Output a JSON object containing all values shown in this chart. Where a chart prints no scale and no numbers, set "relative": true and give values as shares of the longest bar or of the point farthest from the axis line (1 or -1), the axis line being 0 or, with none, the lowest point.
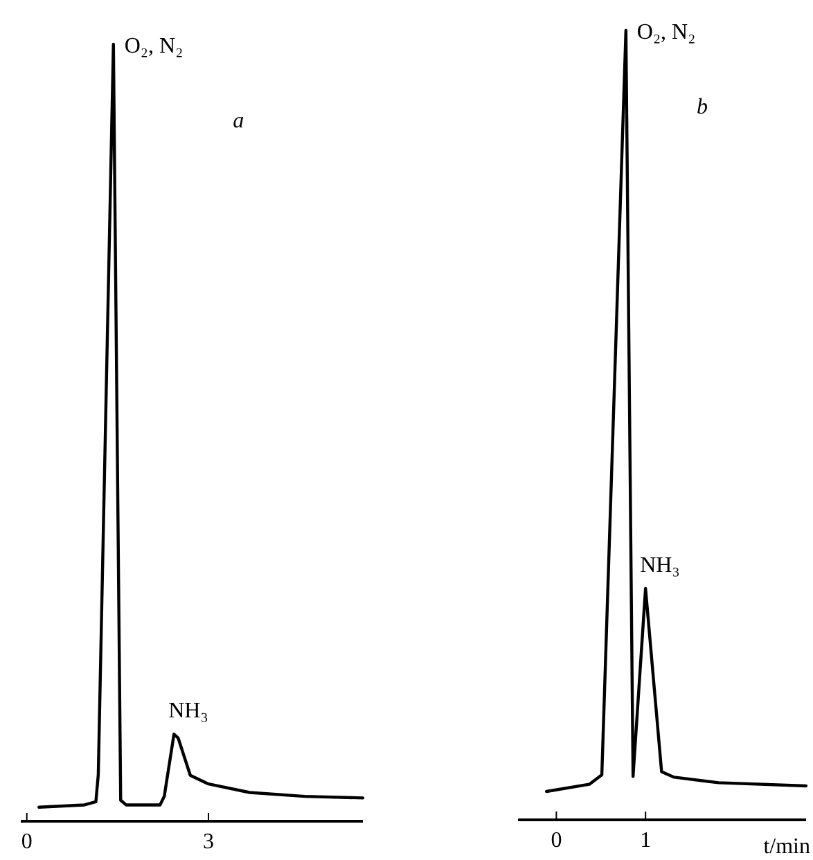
{
  "chart_data": [
    {
      "type": "line",
      "relative": true,
      "xlim": [
        -0.1,
        5.55
      ],
      "xticks": [
        0,
        3
      ],
      "annotations": [
        {
          "text": "O₂, N₂",
          "x": 1.43,
          "y": 1
        },
        {
          "text": "NH₃",
          "x": 2.43,
          "y": 0.112
        },
        "a"
      ],
      "series": [
        {
          "color": "#000000",
          "x": [
            0.2,
            0.95,
            1.14,
            1.18,
            1.43,
            1.55,
            1.64,
            2.2,
            2.27,
            2.43,
            2.5,
            2.7,
            3.0,
            3.68,
            4.59,
            5.55
          ],
          "values": [
            0.018,
            0.021,
            0.025,
            0.06,
            1,
            0.027,
            0.021,
            0.021,
            0.032,
            0.112,
            0.107,
            0.059,
            0.048,
            0.037,
            0.032,
            0.03
          ]
        }
      ]
    },
    {
      "type": "line",
      "relative": true,
      "xlim": [
        -0.43,
        2.8
      ],
      "xticks": [
        0,
        1
      ],
      "xlabel": "t/min",
      "annotations": [
        {
          "text": "O₂, N₂",
          "x": 0.78,
          "y": 1
        },
        {
          "text": "NH₃",
          "x": 1.0,
          "y": 0.293
        },
        "b"
      ],
      "series": [
        {
          "color": "#000000",
          "x": [
            -0.11,
            0.37,
            0.51,
            0.78,
            0.86,
            1.0,
            1.18,
            1.32,
            1.82,
            2.8
          ],
          "values": [
            0.036,
            0.045,
            0.057,
            1,
            0.055,
            0.293,
            0.061,
            0.054,
            0.047,
            0.043
          ]
        }
      ]
    }
  ]
}
